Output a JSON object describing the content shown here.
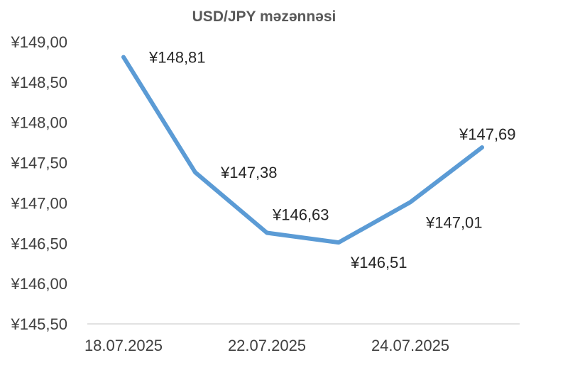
{
  "chart_data": {
    "type": "line",
    "title": "USD/JPY məzənnəsi",
    "xlabel": "",
    "ylabel": "",
    "ylim": [
      145.5,
      149.0
    ],
    "ytick_step": 0.5,
    "y_tick_labels": [
      "¥145,50",
      "¥146,00",
      "¥146,50",
      "¥147,00",
      "¥147,50",
      "¥148,00",
      "¥148,50",
      "¥149,00"
    ],
    "x_tick_labels": [
      "18.07.2025",
      "22.07.2025",
      "24.07.2025"
    ],
    "grid": false,
    "legend": "none",
    "series": [
      {
        "values": [
          148.81,
          147.38,
          146.63,
          146.51,
          147.01,
          147.69
        ],
        "labels": [
          "¥148,81",
          "¥147,38",
          "¥146,63",
          "¥146,51",
          "¥147,01",
          "¥147,69"
        ],
        "color": "#5B9BD5"
      }
    ],
    "axis_color": "#D9D9D9"
  }
}
